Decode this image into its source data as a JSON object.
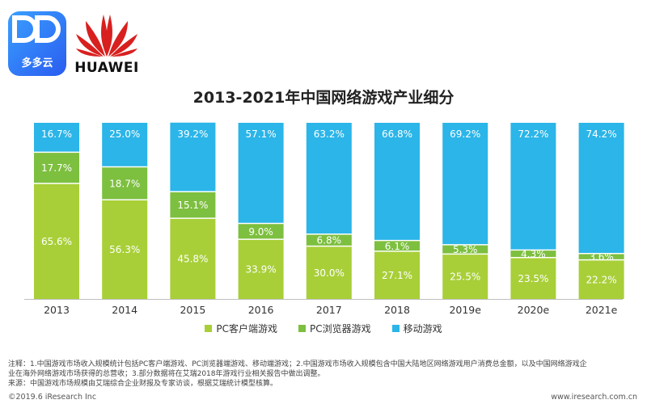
{
  "logos": {
    "duoduo_label": "多多云",
    "huawei_label": "HUAWEI"
  },
  "colors": {
    "pc_client": "#a8cf38",
    "pc_browser": "#7dbf3f",
    "mobile": "#2bb5e8",
    "bar_bg": "#ffffff"
  },
  "chart_data": {
    "type": "bar",
    "stacked": true,
    "normalized": true,
    "title": "2013-2021年中国网络游戏产业细分",
    "categories": [
      "2013",
      "2014",
      "2015",
      "2016",
      "2017",
      "2018",
      "2019e",
      "2020e",
      "2021e"
    ],
    "series": [
      {
        "name": "PC客户端游戏",
        "key": "pc_client",
        "values": [
          65.6,
          56.3,
          45.8,
          33.9,
          30.0,
          27.1,
          25.5,
          23.5,
          22.2
        ],
        "labels": [
          "65.6%",
          "56.3%",
          "45.8%",
          "33.9%",
          "30.0%",
          "27.1%",
          "25.5%",
          "23.5%",
          "22.2%"
        ]
      },
      {
        "name": "PC浏览器游戏",
        "key": "pc_browser",
        "values": [
          17.7,
          18.7,
          15.1,
          9.0,
          6.8,
          6.1,
          5.3,
          4.3,
          3.6
        ],
        "labels": [
          "17.7%",
          "18.7%",
          "15.1%",
          "9.0%",
          "6.8%",
          "6.1%",
          "5.3%",
          "4.3%",
          "3.6%"
        ]
      },
      {
        "name": "移动游戏",
        "key": "mobile",
        "values": [
          16.7,
          25.0,
          39.2,
          57.1,
          63.2,
          66.8,
          69.2,
          72.2,
          74.2
        ],
        "labels": [
          "16.7%",
          "25.0%",
          "39.2%",
          "57.1%",
          "63.2%",
          "66.8%",
          "69.2%",
          "72.2%",
          "74.2%"
        ]
      }
    ],
    "ylim": [
      0,
      100
    ],
    "legend_position": "bottom"
  },
  "notes": {
    "line1": "注释：1.中国游戏市场收入规模统计包括PC客户端游戏、PC浏览器端游戏、移动端游戏；2.中国游戏市场收入规模包含中国大陆地区网络游戏用户消费总金额，以及中国网络游戏企",
    "line2": "业在海外网络游戏市场获得的总营收；3.部分数据将在艾瑞2018年游戏行业相关报告中做出调整。",
    "line3": "来源：中国游戏市场规模由艾瑞综合企业财报及专家访谈，根据艾瑞统计模型核算。"
  },
  "footer": {
    "copyright": "©2019.6 iResearch Inc",
    "website": "www.iresearch.com.cn"
  }
}
